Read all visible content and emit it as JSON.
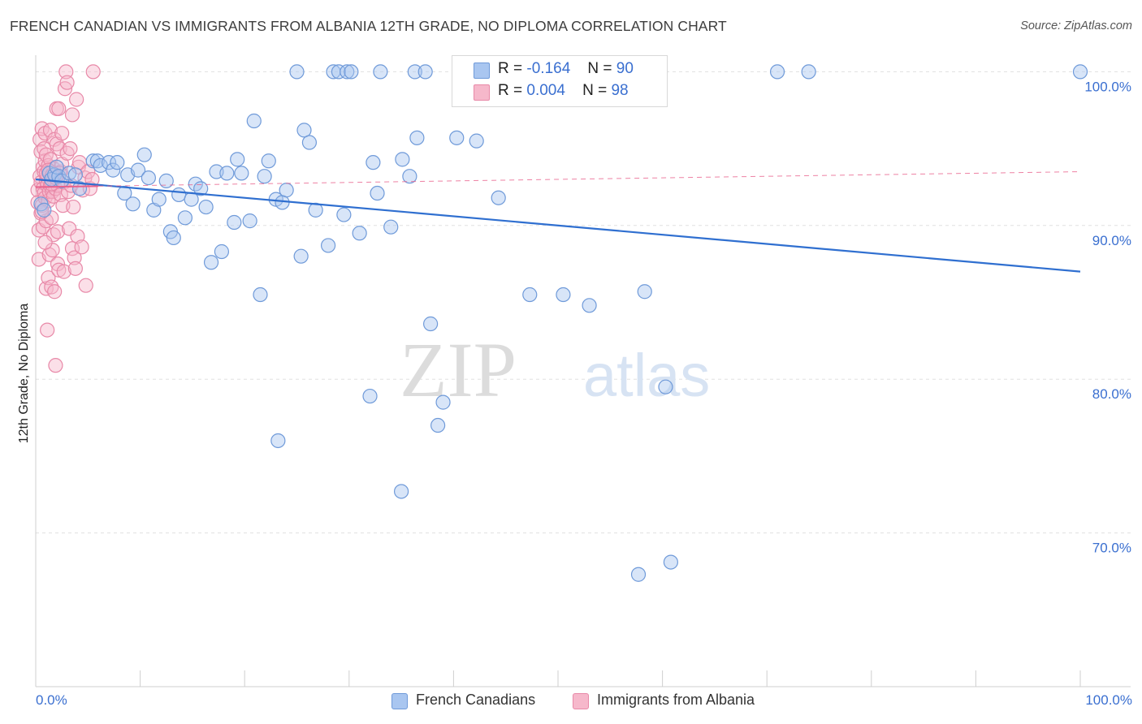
{
  "header": {
    "title": "FRENCH CANADIAN VS IMMIGRANTS FROM ALBANIA 12TH GRADE, NO DIPLOMA CORRELATION CHART",
    "source": "Source: ZipAtlas.com"
  },
  "stats": {
    "rows": [
      {
        "r_label": "R =",
        "r_value": "-0.164",
        "n_label": "N =",
        "n_value": "90"
      },
      {
        "r_label": "R =",
        "r_value": "0.004",
        "n_label": "N =",
        "n_value": "98"
      }
    ]
  },
  "legend": {
    "items": [
      "French Canadians",
      "Immigrants from Albania"
    ]
  },
  "x_axis": {
    "min_label": "0.0%",
    "max_label": "100.0%"
  },
  "colors": {
    "blue_fill": "#a9c6f0",
    "blue_stroke": "#6f9ad9",
    "blue_line": "#2f6fd0",
    "pink_fill": "#f6b8cb",
    "pink_stroke": "#e889a8",
    "pink_line": "#e8618c",
    "grid": "#e0e0e0",
    "axis_text": "#3a6fd0"
  },
  "chart_data": {
    "type": "scatter",
    "title": "FRENCH CANADIAN VS IMMIGRANTS FROM ALBANIA 12TH GRADE, NO DIPLOMA CORRELATION CHART",
    "xlabel": "",
    "ylabel": "12th Grade, No Diploma",
    "xlim": [
      0,
      100
    ],
    "ylim": [
      60,
      101.5
    ],
    "y_ticks": [
      70,
      80,
      90,
      100
    ],
    "y_tick_labels": [
      "70.0%",
      "80.0%",
      "90.0%",
      "100.0%"
    ],
    "watermark": {
      "bold": "ZIP",
      "light": "atlas"
    },
    "series": [
      {
        "name": "French Canadians",
        "color": "#a9c6f0",
        "trend": {
          "x": [
            0,
            100
          ],
          "y": [
            93.0,
            87.0
          ]
        },
        "points": [
          [
            0.5,
            91.4
          ],
          [
            0.8,
            91.0
          ],
          [
            1.3,
            93.4
          ],
          [
            1.5,
            93.0
          ],
          [
            1.8,
            93.3
          ],
          [
            2.0,
            93.8
          ],
          [
            2.2,
            93.2
          ],
          [
            2.5,
            92.9
          ],
          [
            3.2,
            93.4
          ],
          [
            3.8,
            93.3
          ],
          [
            4.2,
            92.4
          ],
          [
            5.5,
            94.2
          ],
          [
            5.9,
            94.2
          ],
          [
            6.2,
            93.9
          ],
          [
            7.0,
            94.1
          ],
          [
            7.4,
            93.6
          ],
          [
            7.8,
            94.1
          ],
          [
            8.5,
            92.1
          ],
          [
            8.8,
            93.3
          ],
          [
            9.3,
            91.4
          ],
          [
            9.8,
            93.6
          ],
          [
            10.4,
            94.6
          ],
          [
            10.8,
            93.1
          ],
          [
            11.3,
            91.0
          ],
          [
            11.8,
            91.7
          ],
          [
            12.5,
            92.9
          ],
          [
            12.9,
            89.6
          ],
          [
            13.2,
            89.2
          ],
          [
            13.7,
            92.0
          ],
          [
            14.3,
            90.5
          ],
          [
            14.9,
            91.7
          ],
          [
            15.3,
            92.7
          ],
          [
            15.8,
            92.4
          ],
          [
            16.3,
            91.2
          ],
          [
            16.8,
            87.6
          ],
          [
            17.3,
            93.5
          ],
          [
            17.8,
            88.3
          ],
          [
            18.3,
            93.4
          ],
          [
            19.0,
            90.2
          ],
          [
            19.3,
            94.3
          ],
          [
            19.7,
            93.4
          ],
          [
            20.5,
            90.3
          ],
          [
            20.9,
            96.8
          ],
          [
            21.5,
            85.5
          ],
          [
            21.9,
            93.2
          ],
          [
            22.3,
            94.2
          ],
          [
            23.0,
            91.7
          ],
          [
            23.2,
            76.0
          ],
          [
            23.6,
            91.5
          ],
          [
            24.0,
            92.3
          ],
          [
            25.0,
            100
          ],
          [
            25.4,
            88.0
          ],
          [
            25.7,
            96.2
          ],
          [
            26.2,
            95.4
          ],
          [
            26.8,
            91.0
          ],
          [
            28.0,
            88.7
          ],
          [
            28.5,
            100
          ],
          [
            29.0,
            100
          ],
          [
            29.5,
            90.7
          ],
          [
            29.8,
            100
          ],
          [
            30.2,
            100
          ],
          [
            31.0,
            89.5
          ],
          [
            32.0,
            78.9
          ],
          [
            32.3,
            94.1
          ],
          [
            32.7,
            92.1
          ],
          [
            33.0,
            100
          ],
          [
            34.0,
            89.9
          ],
          [
            35.0,
            72.7
          ],
          [
            35.1,
            94.3
          ],
          [
            35.8,
            93.2
          ],
          [
            36.5,
            95.7
          ],
          [
            36.3,
            100
          ],
          [
            37.3,
            100
          ],
          [
            37.8,
            83.6
          ],
          [
            38.5,
            77.0
          ],
          [
            39.0,
            78.5
          ],
          [
            40.3,
            95.7
          ],
          [
            42.2,
            95.5
          ],
          [
            44.3,
            91.8
          ],
          [
            47.0,
            100
          ],
          [
            47.3,
            85.5
          ],
          [
            50.5,
            85.5
          ],
          [
            53.0,
            84.8
          ],
          [
            57.7,
            67.3
          ],
          [
            58.3,
            85.7
          ],
          [
            60.3,
            79.5
          ],
          [
            60.8,
            68.1
          ],
          [
            71.0,
            100
          ],
          [
            74.0,
            100
          ],
          [
            100,
            100
          ]
        ]
      },
      {
        "name": "Immigrants from Albania",
        "color": "#f6b8cb",
        "trend": {
          "x": [
            0,
            100
          ],
          "y": [
            92.5,
            93.5
          ]
        },
        "points": [
          [
            0.2,
            92.3
          ],
          [
            0.2,
            91.5
          ],
          [
            0.3,
            89.7
          ],
          [
            0.3,
            87.8
          ],
          [
            0.4,
            93.2
          ],
          [
            0.4,
            95.6
          ],
          [
            0.5,
            92.8
          ],
          [
            0.5,
            90.8
          ],
          [
            0.5,
            94.8
          ],
          [
            0.6,
            96.3
          ],
          [
            0.6,
            91.3
          ],
          [
            0.7,
            93.8
          ],
          [
            0.7,
            92.4
          ],
          [
            0.7,
            89.9
          ],
          [
            0.8,
            95.0
          ],
          [
            0.8,
            92.1
          ],
          [
            0.8,
            93.5
          ],
          [
            0.9,
            94.2
          ],
          [
            0.9,
            91.8
          ],
          [
            0.9,
            96.0
          ],
          [
            1.0,
            92.9
          ],
          [
            1.0,
            94.6
          ],
          [
            1.0,
            85.9
          ],
          [
            1.0,
            90.3
          ],
          [
            1.1,
            93.1
          ],
          [
            1.1,
            92.6
          ],
          [
            1.1,
            83.2
          ],
          [
            1.2,
            93.9
          ],
          [
            1.2,
            91.6
          ],
          [
            1.2,
            86.6
          ],
          [
            1.3,
            92.2
          ],
          [
            1.3,
            93.5
          ],
          [
            1.3,
            88.1
          ],
          [
            1.4,
            96.2
          ],
          [
            1.4,
            92.6
          ],
          [
            1.4,
            94.3
          ],
          [
            1.5,
            90.5
          ],
          [
            1.5,
            86.0
          ],
          [
            1.5,
            93.0
          ],
          [
            1.6,
            92.2
          ],
          [
            1.6,
            88.4
          ],
          [
            1.7,
            91.9
          ],
          [
            1.7,
            89.4
          ],
          [
            1.7,
            93.7
          ],
          [
            1.8,
            92.9
          ],
          [
            1.8,
            95.6
          ],
          [
            1.8,
            85.7
          ],
          [
            1.9,
            92.4
          ],
          [
            1.9,
            80.9
          ],
          [
            2.0,
            95.3
          ],
          [
            2.0,
            93.2
          ],
          [
            2.0,
            97.6
          ],
          [
            2.1,
            89.6
          ],
          [
            2.1,
            87.5
          ],
          [
            2.1,
            92.6
          ],
          [
            2.2,
            97.6
          ],
          [
            2.2,
            87.1
          ],
          [
            2.3,
            95.0
          ],
          [
            2.4,
            92.0
          ],
          [
            2.4,
            93.5
          ],
          [
            2.5,
            94.0
          ],
          [
            2.5,
            96.0
          ],
          [
            2.6,
            91.3
          ],
          [
            2.7,
            92.8
          ],
          [
            2.7,
            87.0
          ],
          [
            2.8,
            98.9
          ],
          [
            2.9,
            100
          ],
          [
            3.0,
            99.3
          ],
          [
            3.0,
            94.7
          ],
          [
            3.1,
            92.2
          ],
          [
            3.2,
            89.8
          ],
          [
            3.3,
            95.0
          ],
          [
            3.4,
            92.6
          ],
          [
            3.5,
            97.2
          ],
          [
            3.5,
            88.5
          ],
          [
            3.6,
            91.2
          ],
          [
            3.7,
            87.9
          ],
          [
            3.8,
            87.2
          ],
          [
            3.9,
            98.2
          ],
          [
            4.0,
            89.3
          ],
          [
            4.1,
            93.8
          ],
          [
            4.2,
            94.1
          ],
          [
            4.4,
            88.6
          ],
          [
            4.5,
            92.3
          ],
          [
            4.7,
            93.1
          ],
          [
            4.8,
            86.1
          ],
          [
            5.0,
            93.5
          ],
          [
            5.2,
            92.4
          ],
          [
            5.4,
            93.0
          ],
          [
            5.5,
            100
          ],
          [
            0.6,
            90.9
          ],
          [
            0.9,
            88.9
          ],
          [
            1.5,
            92.7
          ],
          [
            2.3,
            93.4
          ],
          [
            1.0,
            93.4
          ],
          [
            1.2,
            93.6
          ],
          [
            1.6,
            93.3
          ],
          [
            1.9,
            93.1
          ]
        ]
      }
    ]
  }
}
